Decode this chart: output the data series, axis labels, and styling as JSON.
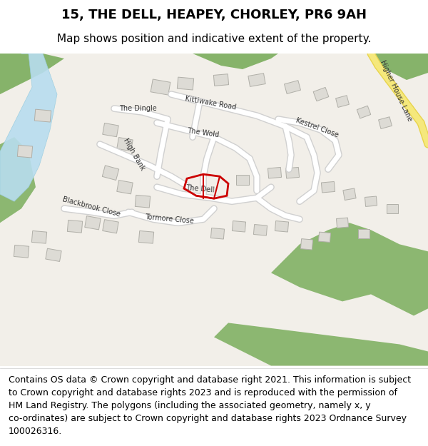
{
  "title": "15, THE DELL, HEAPEY, CHORLEY, PR6 9AH",
  "subtitle": "Map shows position and indicative extent of the property.",
  "footer_line1": "Contains OS data © Crown copyright and database right 2021. This information is subject",
  "footer_line2": "to Crown copyright and database rights 2023 and is reproduced with the permission of",
  "footer_line3": "HM Land Registry. The polygons (including the associated geometry, namely x, y",
  "footer_line4": "co-ordinates) are subject to Crown copyright and database rights 2023 Ordnance Survey",
  "footer_line5": "100026316.",
  "bg_color": "#f0ede8",
  "map_bg": "#f5f2ed",
  "road_color": "#ffffff",
  "road_outline": "#cccccc",
  "green_color": "#7aad5c",
  "water_color": "#a8d4e6",
  "building_color": "#dddbd5",
  "building_outline": "#bbbbbb",
  "highlight_color": "#cc0000",
  "yellow_road": "#f5e87c",
  "title_fontsize": 13,
  "subtitle_fontsize": 11,
  "footer_fontsize": 9
}
